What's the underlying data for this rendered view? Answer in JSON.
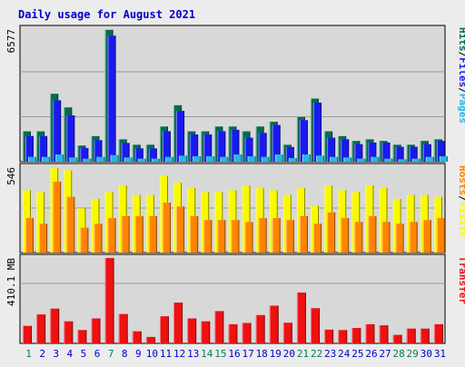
{
  "chart_data": {
    "type": "bar",
    "title": "Daily usage for August 2021",
    "categories": [
      "1",
      "2",
      "3",
      "4",
      "5",
      "6",
      "7",
      "8",
      "9",
      "10",
      "11",
      "12",
      "13",
      "14",
      "15",
      "16",
      "17",
      "18",
      "19",
      "20",
      "21",
      "22",
      "23",
      "24",
      "25",
      "26",
      "27",
      "28",
      "29",
      "30",
      "31"
    ],
    "weekend_days": [
      "1",
      "7",
      "14",
      "15",
      "21",
      "22",
      "28",
      "29"
    ],
    "colors": {
      "hits": "#006e4e",
      "files": "#1a1af0",
      "pages": "#27b6e8",
      "hosts": "#ff8400",
      "visits": "#f8f800",
      "transfer": "#ee1111",
      "title": "#0000cc",
      "weekend_label": "#007f4f",
      "weekday_label": "#0000cc"
    },
    "panels": [
      {
        "name": "hits_files_pages",
        "scale_max": 6577,
        "scale_label": "6577",
        "side_label": {
          "parts": [
            "Hits",
            "/",
            "Files",
            "/",
            "Pages"
          ]
        },
        "series": [
          {
            "name": "Hits",
            "values": [
              1506,
              1506,
              3368,
              2692,
              800,
              1269,
              6538,
              1110,
              840,
              840,
              1743,
              2800,
              1506,
              1506,
              1743,
              1743,
              1506,
              1743,
              1981,
              840,
              2216,
              3130,
              1506,
              1269,
              1030,
              1110,
              1030,
              840,
              840,
              1030,
              1110
            ]
          },
          {
            "name": "Files",
            "values": [
              1270,
              1270,
              3044,
              2296,
              680,
              1070,
              6248,
              930,
              660,
              660,
              1510,
              2520,
              1350,
              1350,
              1510,
              1580,
              1190,
              1430,
              1820,
              730,
              2060,
              2930,
              1190,
              1110,
              870,
              950,
              950,
              740,
              740,
              870,
              1030
            ]
          },
          {
            "name": "Pages",
            "values": [
              240,
              240,
              360,
              210,
              150,
              240,
              330,
              210,
              150,
              150,
              240,
              300,
              270,
              270,
              240,
              360,
              270,
              240,
              360,
              180,
              360,
              300,
              240,
              210,
              150,
              240,
              150,
              120,
              150,
              240,
              270
            ]
          }
        ]
      },
      {
        "name": "hosts_visits",
        "scale_max": 546,
        "scale_label": "546",
        "side_label": {
          "parts": [
            "Hosts",
            "/",
            "Visits"
          ]
        },
        "series": [
          {
            "name": "Visits",
            "values": [
              398,
              386,
              540,
              525,
              283,
              344,
              386,
              429,
              368,
              368,
              491,
              448,
              412,
              386,
              386,
              398,
              429,
              412,
              398,
              368,
              412,
              300,
              429,
              398,
              386,
              429,
              412,
              343,
              368,
              368,
              356
            ]
          },
          {
            "name": "Hosts",
            "values": [
              220,
              184,
              453,
              356,
              159,
              184,
              220,
              233,
              233,
              233,
              319,
              294,
              233,
              208,
              208,
              208,
              196,
              220,
              220,
              208,
              233,
              184,
              257,
              220,
              196,
              233,
              196,
              184,
              196,
              208,
              220
            ]
          }
        ]
      },
      {
        "name": "transfer",
        "scale_max": 410.1,
        "scale_label": "410.1 MB",
        "side_label": {
          "parts": [
            "Transfer"
          ]
        },
        "series": [
          {
            "name": "Transfer",
            "values": [
              84,
              139,
              167,
              106,
              64,
              120,
              410,
              141,
              58,
              31,
              130,
              196,
              120,
              106,
              155,
              92,
              98,
              136,
              181,
              99,
              244,
              169,
              66,
              64,
              74,
              92,
              87,
              41,
              71,
              71,
              92
            ]
          }
        ]
      }
    ]
  }
}
